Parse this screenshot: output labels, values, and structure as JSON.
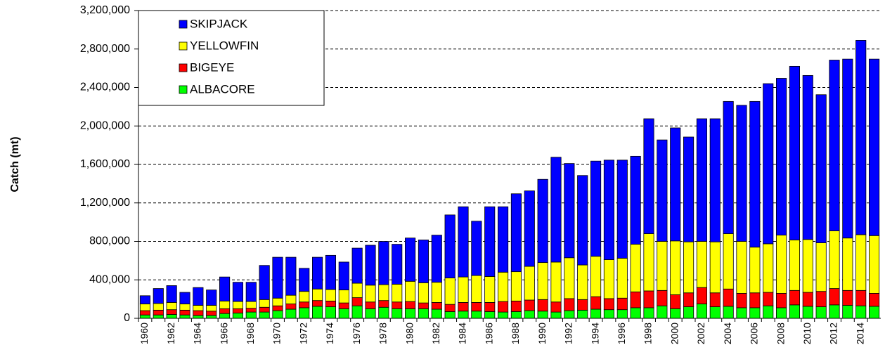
{
  "chart_data": {
    "type": "bar",
    "stacked": true,
    "y_label": "Catch (mt)",
    "categories": [
      "1960",
      null,
      "1962",
      null,
      "1964",
      null,
      "1966",
      null,
      "1968",
      null,
      "1970",
      null,
      "1972",
      null,
      "1974",
      null,
      "1976",
      null,
      "1978",
      null,
      "1980",
      null,
      "1982",
      null,
      "1984",
      null,
      "1986",
      null,
      "1988",
      null,
      "1990",
      null,
      "1992",
      null,
      "1994",
      null,
      "1996",
      null,
      "1998",
      null,
      "2000",
      null,
      "2002",
      null,
      "2004",
      null,
      "2006",
      null,
      "2008",
      null,
      "2010",
      null,
      "2012",
      null,
      "2014",
      null
    ],
    "series": [
      {
        "name": "ALBACORE",
        "color": "#00ff00",
        "values": [
          35000,
          35000,
          40000,
          35000,
          30000,
          30000,
          50000,
          55000,
          65000,
          65000,
          80000,
          95000,
          110000,
          125000,
          120000,
          100000,
          130000,
          100000,
          115000,
          100000,
          100000,
          100000,
          95000,
          70000,
          75000,
          75000,
          70000,
          65000,
          70000,
          80000,
          75000,
          65000,
          80000,
          85000,
          95000,
          90000,
          90000,
          110000,
          110000,
          130000,
          100000,
          120000,
          150000,
          120000,
          125000,
          110000,
          110000,
          130000,
          110000,
          140000,
          125000,
          120000,
          140000,
          135000,
          130000,
          125000
        ]
      },
      {
        "name": "BIGEYE",
        "color": "#ff0000",
        "values": [
          45000,
          50000,
          50000,
          50000,
          50000,
          45000,
          50000,
          45000,
          40000,
          50000,
          50000,
          55000,
          60000,
          60000,
          60000,
          60000,
          85000,
          70000,
          70000,
          70000,
          75000,
          60000,
          70000,
          75000,
          90000,
          90000,
          95000,
          110000,
          110000,
          110000,
          120000,
          105000,
          125000,
          110000,
          130000,
          115000,
          120000,
          165000,
          175000,
          160000,
          145000,
          145000,
          170000,
          145000,
          180000,
          150000,
          155000,
          140000,
          150000,
          150000,
          145000,
          160000,
          170000,
          155000,
          160000,
          135000
        ]
      },
      {
        "name": "YELLOWFIN",
        "color": "#ffff00",
        "values": [
          70000,
          70000,
          75000,
          65000,
          55000,
          60000,
          80000,
          75000,
          70000,
          80000,
          80000,
          90000,
          110000,
          120000,
          120000,
          135000,
          150000,
          175000,
          165000,
          185000,
          210000,
          210000,
          210000,
          275000,
          265000,
          280000,
          270000,
          305000,
          305000,
          350000,
          385000,
          415000,
          425000,
          360000,
          420000,
          405000,
          415000,
          495000,
          595000,
          510000,
          560000,
          530000,
          480000,
          530000,
          575000,
          540000,
          475000,
          505000,
          605000,
          525000,
          550000,
          505000,
          600000,
          545000,
          580000,
          600000
        ]
      },
      {
        "name": "SKIPJACK",
        "color": "#0000ff",
        "values": [
          85000,
          155000,
          175000,
          120000,
          185000,
          160000,
          250000,
          200000,
          200000,
          355000,
          425000,
          395000,
          240000,
          330000,
          355000,
          290000,
          365000,
          415000,
          450000,
          415000,
          450000,
          445000,
          490000,
          655000,
          730000,
          565000,
          725000,
          680000,
          810000,
          785000,
          865000,
          1090000,
          980000,
          930000,
          990000,
          1035000,
          1020000,
          915000,
          1195000,
          1055000,
          1175000,
          1090000,
          1275000,
          1280000,
          1375000,
          1415000,
          1515000,
          1665000,
          1630000,
          1805000,
          1705000,
          1540000,
          1775000,
          1860000,
          2020000,
          1835000
        ]
      }
    ],
    "ylim": [
      0,
      3200000
    ],
    "yticks": [
      0,
      {
        "value": 400000,
        "label": "400,000"
      },
      {
        "value": 800000,
        "label": "800,000"
      },
      {
        "value": 1200000,
        "label": "1,200,000"
      },
      {
        "value": 1600000,
        "label": "1,600,000"
      },
      {
        "value": 2000000,
        "label": "2,000,000"
      },
      {
        "value": 2400000,
        "label": "2,400,000"
      },
      {
        "value": 2800000,
        "label": "2,800,000"
      },
      {
        "value": 3200000,
        "label": "3,200,000"
      }
    ],
    "grid": true,
    "legend": "top-left"
  }
}
